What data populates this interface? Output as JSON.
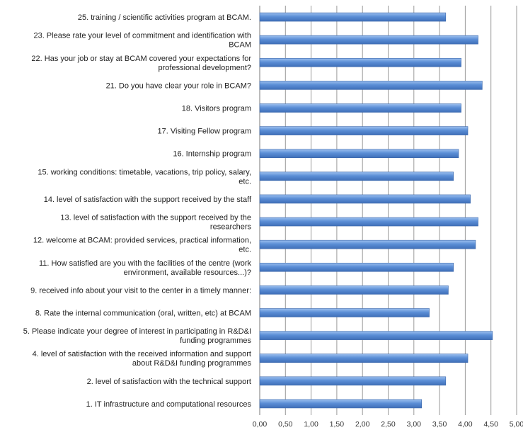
{
  "chart_data": {
    "type": "bar",
    "orientation": "horizontal",
    "title": "",
    "xlabel": "",
    "ylabel": "",
    "xlim": [
      0,
      5
    ],
    "grid": true,
    "bar_color": "#5b8ed6",
    "categories": [
      [
        "1. IT infrastructure and computational resources"
      ],
      [
        "2.  level of satisfaction with the technical support"
      ],
      [
        "4.  level of satisfaction with the received information and support",
        "about R&D&I funding programmes"
      ],
      [
        "5. Please indicate your degree of interest in participating in R&D&I",
        "funding programmes"
      ],
      [
        "8. Rate the internal communication (oral, written, etc) at BCAM"
      ],
      [
        "9.  received info about your visit to the center in a timely manner:"
      ],
      [
        "11. How satisfied are you with the facilities of the centre (work",
        "environment, available resources...)?"
      ],
      [
        "12.  welcome at BCAM: provided services, practical information,",
        "etc."
      ],
      [
        "13.  level of satisfaction with the support received by the",
        "researchers"
      ],
      [
        "14.  level of satisfaction with the support received by the staff"
      ],
      [
        "15.  working conditions: timetable, vacations, trip policy, salary,",
        "etc."
      ],
      [
        "16.  Internship program"
      ],
      [
        "17.  Visiting Fellow program"
      ],
      [
        "18.  Visitors program"
      ],
      [
        "21. Do you have clear your role in BCAM?"
      ],
      [
        "22. Has your job or stay at BCAM covered your expectations for",
        "professional development?"
      ],
      [
        "23. Please rate your level of commitment and identification with",
        "BCAM"
      ],
      [
        "25.  training / scientific activities program at BCAM."
      ]
    ],
    "values": [
      3.15,
      3.62,
      4.05,
      4.53,
      3.3,
      3.67,
      3.77,
      4.2,
      4.25,
      4.1,
      3.77,
      3.87,
      4.05,
      3.92,
      4.33,
      3.92,
      4.25,
      3.62
    ],
    "x_ticks": [
      "0,00",
      "0,50",
      "1,00",
      "1,50",
      "2,00",
      "2,50",
      "3,00",
      "3,50",
      "4,00",
      "4,50",
      "5,00"
    ]
  }
}
